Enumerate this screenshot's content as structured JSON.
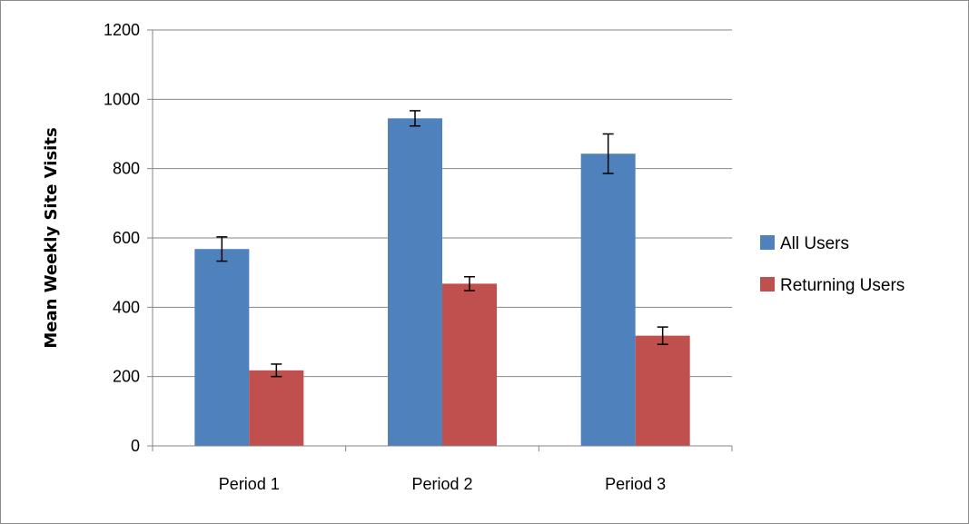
{
  "chart_data": {
    "type": "bar",
    "categories": [
      "Period 1",
      "Period 2",
      "Period 3"
    ],
    "series": [
      {
        "name": "All Users",
        "values": [
          568,
          945,
          843
        ],
        "error": [
          35,
          22,
          57
        ],
        "color": "#4f81bd"
      },
      {
        "name": "Returning Users",
        "values": [
          218,
          468,
          318
        ],
        "error": [
          18,
          20,
          25
        ],
        "color": "#c0504d"
      }
    ],
    "title": "",
    "xlabel": "",
    "ylabel": "Mean Weekly Site Visits",
    "ylim": [
      0,
      1200
    ],
    "yticks": [
      "0",
      "200",
      "400",
      "600",
      "800",
      "1000",
      "1200"
    ],
    "grid": true,
    "legend_position": "right"
  }
}
